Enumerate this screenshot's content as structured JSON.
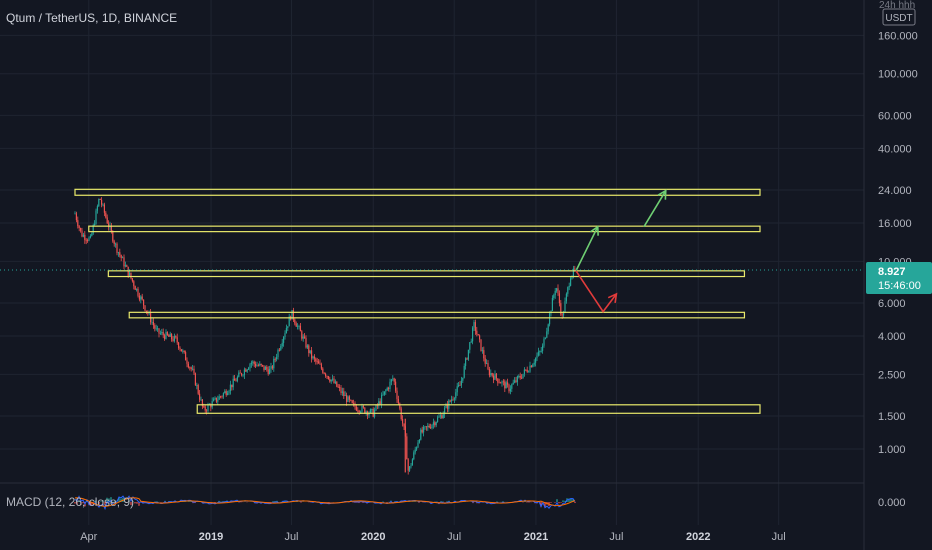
{
  "header": {
    "title": "Qtum / TetherUS, 1D, BINANCE",
    "top_right_label": "24h hhh"
  },
  "currency_badge": "USDT",
  "price_badge": {
    "price": "8.927",
    "countdown": "15:46:00",
    "color": "#26a69a"
  },
  "macd": {
    "label": "MACD (12, 26, close, 9)",
    "ticks": [
      "0.000"
    ]
  },
  "colors": {
    "background": "#131722",
    "grid": "#1f2431",
    "up": "#26a69a",
    "down": "#ef5350",
    "zone": "#e9e96b",
    "arrow_up": "#6fcf73",
    "arrow_down": "#e03b3b",
    "text": "#b2b5be"
  },
  "chart_data": {
    "type": "candlestick",
    "title": "Qtum / TetherUS, 1D, BINANCE",
    "y_scale": "log",
    "y_ticks": [
      "160.000",
      "100.000",
      "60.000",
      "40.000",
      "24.000",
      "16.000",
      "10.000",
      "6.000",
      "4.000",
      "2.500",
      "1.500",
      "1.000"
    ],
    "x_ticks": [
      "Apr",
      "2019",
      "Jul",
      "2020",
      "Jul",
      "2021",
      "Jul",
      "2022",
      "Jul"
    ],
    "current_price": 8.927,
    "price_path": [
      {
        "t": "2018-03-01",
        "p": 18
      },
      {
        "t": "2018-03-15",
        "p": 14
      },
      {
        "t": "2018-04-05",
        "p": 13
      },
      {
        "t": "2018-04-25",
        "p": 22
      },
      {
        "t": "2018-05-10",
        "p": 17
      },
      {
        "t": "2018-06-01",
        "p": 12
      },
      {
        "t": "2018-07-01",
        "p": 8.5
      },
      {
        "t": "2018-08-01",
        "p": 6
      },
      {
        "t": "2018-09-01",
        "p": 4.2
      },
      {
        "t": "2018-10-15",
        "p": 3.8
      },
      {
        "t": "2018-11-20",
        "p": 2.6
      },
      {
        "t": "2018-12-15",
        "p": 1.6
      },
      {
        "t": "2019-02-01",
        "p": 2
      },
      {
        "t": "2019-04-01",
        "p": 2.9
      },
      {
        "t": "2019-05-15",
        "p": 2.6
      },
      {
        "t": "2019-07-01",
        "p": 5.3
      },
      {
        "t": "2019-08-15",
        "p": 3.1
      },
      {
        "t": "2019-10-01",
        "p": 2.3
      },
      {
        "t": "2019-11-15",
        "p": 1.7
      },
      {
        "t": "2020-01-01",
        "p": 1.55
      },
      {
        "t": "2020-02-15",
        "p": 2.4
      },
      {
        "t": "2020-03-12",
        "p": 1.2
      },
      {
        "t": "2020-03-20",
        "p": 0.75
      },
      {
        "t": "2020-04-15",
        "p": 1.2
      },
      {
        "t": "2020-06-01",
        "p": 1.5
      },
      {
        "t": "2020-07-15",
        "p": 2.2
      },
      {
        "t": "2020-08-15",
        "p": 4.6
      },
      {
        "t": "2020-09-15",
        "p": 2.6
      },
      {
        "t": "2020-11-01",
        "p": 2.1
      },
      {
        "t": "2020-12-15",
        "p": 2.7
      },
      {
        "t": "2021-01-15",
        "p": 3.4
      },
      {
        "t": "2021-02-15",
        "p": 7.5
      },
      {
        "t": "2021-03-01",
        "p": 5
      },
      {
        "t": "2021-03-20",
        "p": 8.5
      },
      {
        "t": "2021-04-01",
        "p": 8.927
      }
    ],
    "zones": [
      {
        "from": "2018-03-01",
        "to": "2022-05-20",
        "low": 22.5,
        "high": 24.2
      },
      {
        "from": "2018-04-01",
        "to": "2022-05-20",
        "low": 14.4,
        "high": 15.4
      },
      {
        "from": "2018-05-15",
        "to": "2022-04-15",
        "low": 8.3,
        "high": 8.9
      },
      {
        "from": "2018-07-01",
        "to": "2022-04-15",
        "low": 5.0,
        "high": 5.35
      },
      {
        "from": "2018-12-01",
        "to": "2022-05-20",
        "low": 1.55,
        "high": 1.72
      }
    ],
    "arrows": [
      {
        "color": "up",
        "points": [
          {
            "t": "2021-04-01",
            "p": 8.9
          },
          {
            "t": "2021-05-20",
            "p": 15.3
          }
        ]
      },
      {
        "color": "up",
        "points": [
          {
            "t": "2021-09-01",
            "p": 15.3
          },
          {
            "t": "2021-10-20",
            "p": 23.8
          }
        ]
      },
      {
        "color": "down",
        "points": [
          {
            "t": "2021-04-01",
            "p": 8.9
          },
          {
            "t": "2021-06-01",
            "p": 5.4
          },
          {
            "t": "2021-07-01",
            "p": 6.7
          }
        ]
      }
    ]
  }
}
